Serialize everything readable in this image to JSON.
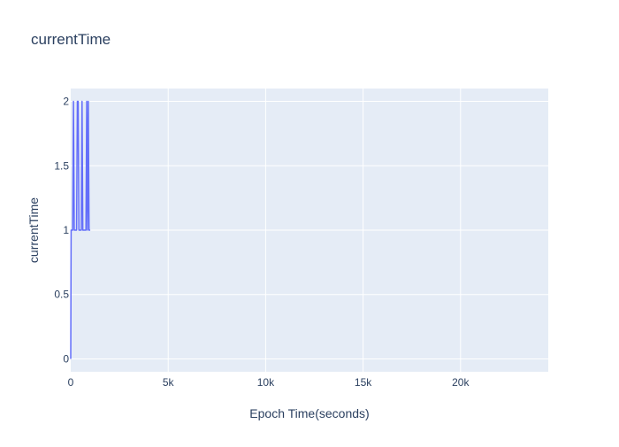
{
  "chart_data": {
    "type": "line",
    "title": "currentTime",
    "xlabel": "Epoch Time(seconds)",
    "ylabel": "currentTime",
    "xlim": [
      0,
      24500
    ],
    "ylim": [
      -0.1,
      2.1
    ],
    "x_ticks": [
      0,
      5000,
      10000,
      15000,
      20000
    ],
    "x_tick_labels": [
      "0",
      "5k",
      "10k",
      "15k",
      "20k"
    ],
    "y_ticks": [
      0,
      0.5,
      1,
      1.5,
      2
    ],
    "y_tick_labels": [
      "0",
      "0.5",
      "1",
      "1.5",
      "2"
    ],
    "grid": true,
    "legend": "none",
    "colors": {
      "plot_background": "#e5ecf6",
      "grid": "#ffffff",
      "series": "#636efa",
      "text": "#2a3f5f"
    },
    "series": [
      {
        "x": [
          0,
          20,
          60,
          100,
          140,
          180,
          220,
          260,
          300,
          340,
          380,
          420,
          460,
          500,
          540,
          580,
          620,
          660,
          700,
          740,
          780,
          820,
          860,
          900,
          940,
          980,
          1000
        ],
        "values": [
          0,
          1,
          1,
          1,
          2,
          1,
          1,
          1,
          1,
          2,
          2,
          1,
          1,
          1,
          1,
          2,
          1,
          1,
          1,
          1,
          1,
          2,
          1,
          2,
          1,
          1,
          1
        ]
      }
    ]
  }
}
